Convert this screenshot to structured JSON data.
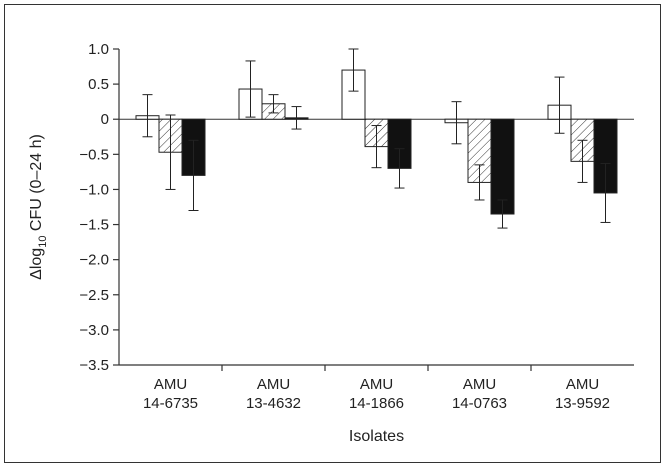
{
  "chart_data": {
    "type": "bar",
    "xlabel": "Isolates",
    "ylabel": {
      "prefix": "Δlog",
      "subscript": "10",
      "suffix": " CFU (0–24 h)"
    },
    "ylim": [
      -3.5,
      1.0
    ],
    "yticks": [
      1.0,
      0.5,
      0,
      -0.5,
      -1.0,
      -1.5,
      -2.0,
      -2.5,
      -3.0,
      -3.5
    ],
    "ytick_labels": [
      "1.0",
      "0.5",
      "0",
      "−0.5",
      "−1.0",
      "−1.5",
      "−2.0",
      "−2.5",
      "−3.0",
      "−3.5"
    ],
    "grid": false,
    "categories": [
      {
        "line1": "AMU",
        "line2": "14-6735"
      },
      {
        "line1": "AMU",
        "line2": "13-4632"
      },
      {
        "line1": "AMU",
        "line2": "14-1866"
      },
      {
        "line1": "AMU",
        "line2": "14-0763"
      },
      {
        "line1": "AMU",
        "line2": "13-9592"
      }
    ],
    "series": [
      {
        "fill": "white",
        "values": [
          0.05,
          0.43,
          0.7,
          -0.05,
          0.2
        ],
        "errors": [
          0.3,
          0.4,
          0.3,
          0.3,
          0.4
        ]
      },
      {
        "fill": "hatched",
        "values": [
          -0.47,
          0.22,
          -0.39,
          -0.9,
          -0.6
        ],
        "errors": [
          0.53,
          0.13,
          0.3,
          0.25,
          0.3
        ]
      },
      {
        "fill": "black",
        "values": [
          -0.8,
          0.02,
          -0.7,
          -1.35,
          -1.05
        ],
        "errors": [
          0.5,
          0.16,
          0.28,
          0.2,
          0.42
        ]
      }
    ]
  }
}
